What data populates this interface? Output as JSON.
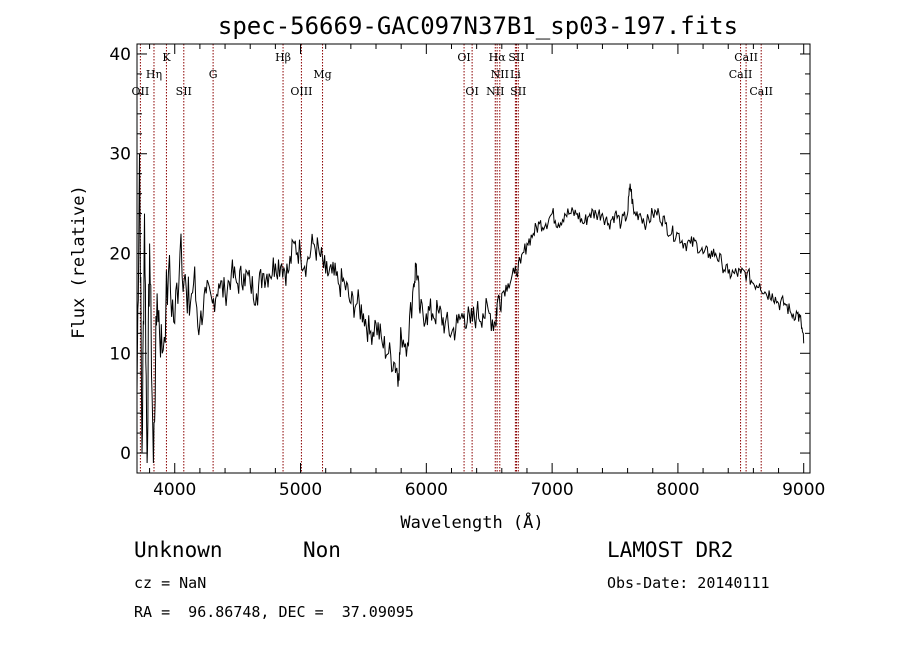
{
  "chart_data": {
    "type": "line",
    "title": "spec-56669-GAC097N37B1_sp03-197.fits",
    "xlabel": "Wavelength (Å)",
    "ylabel": "Flux (relative)",
    "xlim": [
      3700,
      9050
    ],
    "ylim": [
      -2,
      41
    ],
    "xticks": [
      4000,
      5000,
      6000,
      7000,
      8000,
      9000
    ],
    "yticks": [
      0,
      10,
      20,
      30,
      40
    ],
    "grid": false,
    "line_color": "#000000",
    "marker_color": "#8b0000",
    "x": [
      3700,
      3720,
      3740,
      3760,
      3780,
      3800,
      3830,
      3860,
      3900,
      3950,
      4000,
      4050,
      4100,
      4150,
      4200,
      4250,
      4300,
      4350,
      4400,
      4450,
      4500,
      4550,
      4600,
      4650,
      4700,
      4750,
      4800,
      4850,
      4900,
      4950,
      5000,
      5050,
      5100,
      5150,
      5200,
      5250,
      5300,
      5350,
      5400,
      5450,
      5500,
      5550,
      5600,
      5650,
      5700,
      5750,
      5780,
      5800,
      5850,
      5900,
      5920,
      5950,
      6000,
      6050,
      6100,
      6150,
      6200,
      6250,
      6300,
      6350,
      6400,
      6450,
      6500,
      6550,
      6563,
      6600,
      6650,
      6700,
      6750,
      6800,
      6850,
      6900,
      6950,
      7000,
      7050,
      7100,
      7150,
      7200,
      7250,
      7300,
      7350,
      7400,
      7450,
      7500,
      7550,
      7600,
      7620,
      7650,
      7700,
      7750,
      7800,
      7850,
      7900,
      7950,
      8000,
      8050,
      8100,
      8150,
      8200,
      8250,
      8300,
      8350,
      8400,
      8450,
      8500,
      8550,
      8600,
      8650,
      8700,
      8750,
      8800,
      8850,
      8900,
      8950,
      8980,
      9000
    ],
    "y": [
      6,
      30,
      0,
      24,
      -1,
      21,
      -1,
      16,
      10,
      18,
      13,
      22,
      14,
      17,
      13,
      16,
      15,
      17,
      16,
      18,
      17,
      18,
      17,
      16,
      18,
      18,
      19,
      19,
      18,
      21,
      20,
      19,
      21,
      20,
      18,
      18,
      17,
      17,
      15,
      15,
      14,
      12,
      13,
      11,
      10,
      9,
      8,
      12,
      11,
      17,
      19,
      14,
      14,
      14,
      14,
      13,
      12,
      13,
      14,
      13,
      14,
      14,
      14,
      13,
      15,
      16,
      17,
      18,
      19,
      21,
      22,
      23,
      23,
      24,
      23,
      24,
      24,
      24,
      23,
      24,
      24,
      24,
      23,
      24,
      23,
      24,
      27,
      24,
      24,
      23,
      24,
      24,
      23,
      22,
      22,
      21,
      21,
      21,
      20,
      20,
      20,
      19,
      18,
      18,
      18,
      18,
      17,
      17,
      16,
      16,
      15,
      15,
      14,
      14,
      13,
      11
    ],
    "lines": [
      {
        "label": "OII",
        "x": 3727,
        "row": 3
      },
      {
        "label": "Hη",
        "x": 3835,
        "row": 2
      },
      {
        "label": "K",
        "x": 3934,
        "row": 1
      },
      {
        "label": "SII",
        "x": 4072,
        "row": 3
      },
      {
        "label": "G",
        "x": 4305,
        "row": 2
      },
      {
        "label": "Hβ",
        "x": 4861,
        "row": 1
      },
      {
        "label": "OIII",
        "x": 5007,
        "row": 3
      },
      {
        "label": "Mg",
        "x": 5175,
        "row": 2
      },
      {
        "label": "OI",
        "x": 6300,
        "row": 1
      },
      {
        "label": "OI",
        "x": 6364,
        "row": 3
      },
      {
        "label": "NII",
        "x": 6548,
        "row": 3
      },
      {
        "label": "Hα",
        "x": 6563,
        "row": 1
      },
      {
        "label": "NII",
        "x": 6584,
        "row": 2
      },
      {
        "label": "Li",
        "x": 6708,
        "row": 2
      },
      {
        "label": "SII",
        "x": 6717,
        "row": 1
      },
      {
        "label": "SII",
        "x": 6731,
        "row": 3
      },
      {
        "label": "CaII",
        "x": 8498,
        "row": 2
      },
      {
        "label": "CaII",
        "x": 8542,
        "row": 1
      },
      {
        "label": "CaII",
        "x": 8662,
        "row": 3
      }
    ]
  },
  "info": {
    "class_label": "Unknown",
    "subclass_label": "Non",
    "survey_label": "LAMOST DR2",
    "cz_text": "cz = NaN",
    "obs_date_text": "Obs-Date: 20140111",
    "coords_text": "RA =  96.86748, DEC =  37.09095"
  }
}
